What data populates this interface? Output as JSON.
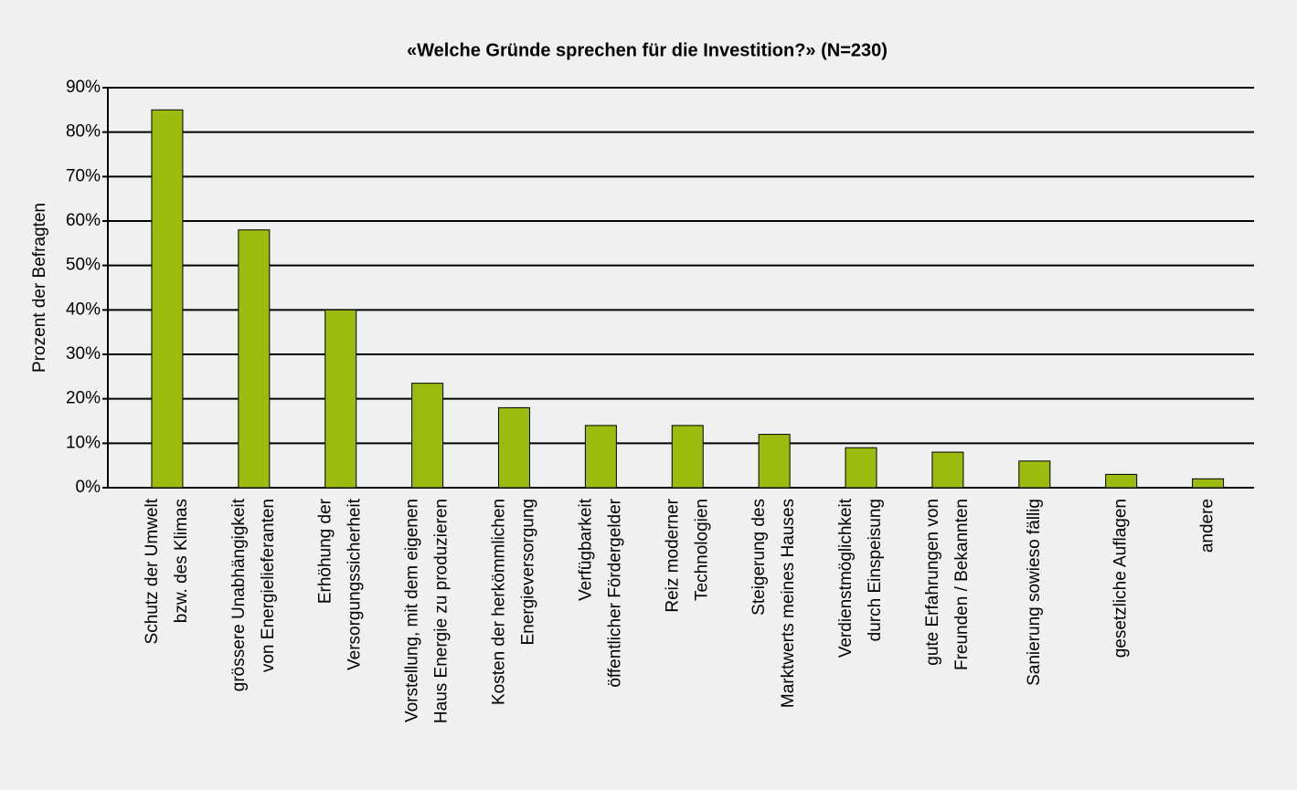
{
  "chart_data": {
    "type": "bar",
    "title": "«Welche Gründe sprechen für die Investition?» (N=230)",
    "y_label": "Prozent der Befragten",
    "categories": [
      [
        "Schutz der Umwelt",
        "bzw. des Klimas"
      ],
      [
        "grössere Unabhängigkeit",
        "von Energielieferanten"
      ],
      [
        "Erhöhung der",
        "Versorgungssicherheit"
      ],
      [
        "Vorstellung, mit dem eigenen",
        "Haus Energie zu produzieren"
      ],
      [
        "Kosten der herkömmlichen",
        "Energieversorgung"
      ],
      [
        "Verfügbarkeit",
        "öffentlicher Fördergelder"
      ],
      [
        "Reiz moderner",
        "Technologien"
      ],
      [
        "Steigerung des",
        "Marktwerts meines Hauses"
      ],
      [
        "Verdienstmöglichkeit",
        "durch Einspeisung"
      ],
      [
        "gute Erfahrungen von",
        "Freunden / Bekannten"
      ],
      [
        "Sanierung sowieso fällig"
      ],
      [
        "gesetzliche Auflagen"
      ],
      [
        "andere"
      ]
    ],
    "values": [
      85,
      58,
      40,
      23.5,
      18,
      14,
      14,
      12,
      9,
      8,
      6,
      3,
      2
    ],
    "color": "#9bbb0e",
    "ylim": [
      0,
      90
    ],
    "yticks": [
      {
        "value": 0,
        "label": "0%"
      },
      {
        "value": 10,
        "label": "10%"
      },
      {
        "value": 20,
        "label": "20%"
      },
      {
        "value": 30,
        "label": "30%"
      },
      {
        "value": 40,
        "label": "40%"
      },
      {
        "value": 50,
        "label": "50%"
      },
      {
        "value": 60,
        "label": "60%"
      },
      {
        "value": 70,
        "label": "70%"
      },
      {
        "value": 80,
        "label": "80%"
      },
      {
        "value": 90,
        "label": "90%"
      }
    ],
    "grid": true
  }
}
